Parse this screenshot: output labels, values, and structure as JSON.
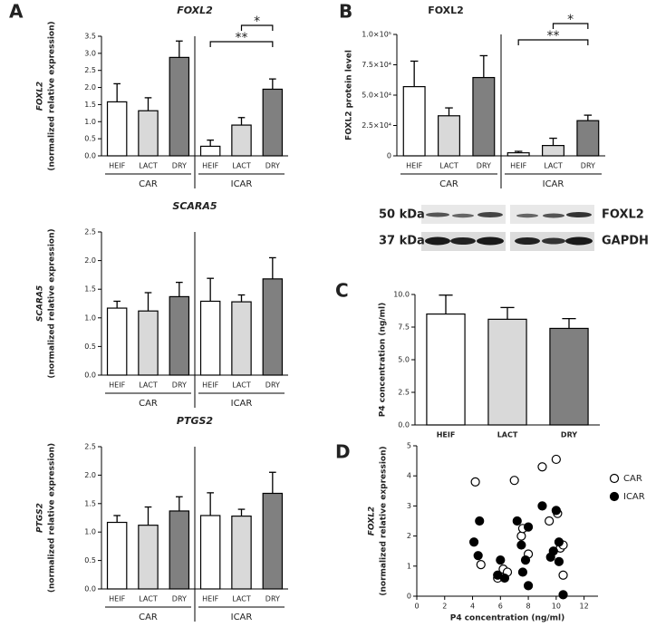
{
  "chart_data": [
    {
      "type": "bar",
      "panel": "A",
      "title": "FOXL2",
      "title_italic": true,
      "ylabel": [
        "FOXL2",
        "(normalized relative expression)"
      ],
      "ylabel_italic_first": true,
      "colors": [
        "#ffffff",
        "#d9d9d9",
        "#808080"
      ],
      "ylim": [
        0,
        3.5
      ],
      "yticks": [
        {
          "value": 0,
          "label": "0.0"
        },
        0.5,
        {
          "value": 1,
          "label": "1.0"
        },
        1.5,
        {
          "value": 2,
          "label": "2.0"
        },
        2.5,
        {
          "value": 3,
          "label": "3.0"
        },
        3.5
      ],
      "groups": [
        {
          "name": "CAR",
          "categories": [
            "HEIF",
            "LACT",
            "DRY"
          ],
          "values": [
            1.58,
            1.32,
            2.88
          ],
          "errors": [
            0.53,
            0.38,
            0.48
          ]
        },
        {
          "name": "ICAR",
          "categories": [
            "HEIF",
            "LACT",
            "DRY"
          ],
          "values": [
            0.28,
            0.9,
            1.95
          ],
          "errors": [
            0.18,
            0.22,
            0.3
          ]
        }
      ],
      "annotations": [
        {
          "text": "*",
          "group": 1,
          "from": 1,
          "to": 2
        },
        {
          "text": "**",
          "group": 1,
          "from": 0,
          "to": 2
        }
      ]
    },
    {
      "type": "bar",
      "title": "SCARA5",
      "title_italic": true,
      "ylabel": [
        "SCARA5",
        "(normalized relative expression)"
      ],
      "ylabel_italic_first": true,
      "colors": [
        "#ffffff",
        "#d9d9d9",
        "#808080"
      ],
      "ylim": [
        0,
        2.5
      ],
      "yticks": [
        {
          "value": 0,
          "label": "0.0"
        },
        0.5,
        {
          "value": 1,
          "label": "1.0"
        },
        1.5,
        {
          "value": 2,
          "label": "2.0"
        },
        2.5
      ],
      "groups": [
        {
          "name": "CAR",
          "categories": [
            "HEIF",
            "LACT",
            "DRY"
          ],
          "values": [
            1.17,
            1.12,
            1.37
          ],
          "errors": [
            0.12,
            0.32,
            0.25
          ]
        },
        {
          "name": "ICAR",
          "categories": [
            "HEIF",
            "LACT",
            "DRY"
          ],
          "values": [
            1.29,
            1.28,
            1.68
          ],
          "errors": [
            0.4,
            0.12,
            0.37
          ]
        }
      ]
    },
    {
      "type": "bar",
      "title": "PTGS2",
      "title_italic": true,
      "ylabel": [
        "PTGS2",
        "(normalized relative expression)"
      ],
      "ylabel_italic_first": true,
      "colors": [
        "#ffffff",
        "#d9d9d9",
        "#808080"
      ],
      "ylim": [
        0,
        2.5
      ],
      "yticks": [
        {
          "value": 0,
          "label": "0.0"
        },
        0.5,
        {
          "value": 1,
          "label": "1.0"
        },
        1.5,
        {
          "value": 2,
          "label": "2.0"
        },
        2.5
      ],
      "groups": [
        {
          "name": "CAR",
          "categories": [
            "HEIF",
            "LACT",
            "DRY"
          ],
          "values": [
            1.17,
            1.12,
            1.37
          ],
          "errors": [
            0.12,
            0.32,
            0.25
          ]
        },
        {
          "name": "ICAR",
          "categories": [
            "HEIF",
            "LACT",
            "DRY"
          ],
          "values": [
            1.29,
            1.28,
            1.68
          ],
          "errors": [
            0.4,
            0.12,
            0.37
          ]
        }
      ]
    },
    {
      "type": "bar",
      "panel": "B",
      "title": "FOXL2",
      "title_italic": false,
      "ylabel": [
        "FOXL2 protein level"
      ],
      "colors": [
        "#ffffff",
        "#d9d9d9",
        "#808080"
      ],
      "ylim": [
        0,
        100000
      ],
      "yticks": [
        0,
        {
          "value": 25000,
          "label": "2.5×10⁴"
        },
        {
          "value": 50000,
          "label": "5.0×10⁴"
        },
        {
          "value": 75000,
          "label": "7.5×10⁴"
        },
        {
          "value": 100000,
          "label": "1.0×10⁵"
        }
      ],
      "groups": [
        {
          "name": "CAR",
          "categories": [
            "HEIF",
            "LACT",
            "DRY"
          ],
          "values": [
            57000,
            33000,
            64500
          ],
          "errors": [
            21000,
            6500,
            18000
          ]
        },
        {
          "name": "ICAR",
          "categories": [
            "HEIF",
            "LACT",
            "DRY"
          ],
          "values": [
            2500,
            8500,
            29000
          ],
          "errors": [
            1200,
            6000,
            4500
          ]
        }
      ],
      "annotations": [
        {
          "text": "*",
          "group": 1,
          "from": 1,
          "to": 2
        },
        {
          "text": "**",
          "group": 1,
          "from": 0,
          "to": 2
        }
      ]
    },
    {
      "type": "bar",
      "panel": "C",
      "ylabel": [
        "P4 concentration (ng/ml)"
      ],
      "colors": [
        "#ffffff",
        "#d9d9d9",
        "#808080"
      ],
      "ylim": [
        0,
        10
      ],
      "yticks": [
        {
          "value": 0,
          "label": "0.0"
        },
        2.5,
        {
          "value": 5,
          "label": "5.0"
        },
        7.5,
        {
          "value": 10,
          "label": "10.0"
        }
      ],
      "categories": [
        "HEIF",
        "LACT",
        "DRY"
      ],
      "values": [
        8.5,
        8.1,
        7.4
      ],
      "errors": [
        1.45,
        0.9,
        0.75
      ]
    },
    {
      "type": "scatter",
      "panel": "D",
      "ylabel": [
        "FOXL2",
        "(normalized relative expression)"
      ],
      "ylabel_italic_first": true,
      "xlabel": "P4 concentration (ng/ml)",
      "xlim": [
        0,
        13
      ],
      "xticks": [
        0,
        2,
        4,
        6,
        8,
        10,
        12
      ],
      "ylim": [
        0,
        5
      ],
      "yticks": [
        0,
        1,
        2,
        3,
        4,
        5
      ],
      "series": [
        {
          "name": "CAR",
          "color": "#000000",
          "fill": "#ffffff",
          "x": [
            4.2,
            4.6,
            5.8,
            6.2,
            6.5,
            7.0,
            7.5,
            7.6,
            8.0,
            9.0,
            9.5,
            10.0,
            10.1,
            10.3,
            10.5,
            10.5
          ],
          "values": [
            3.8,
            1.05,
            0.6,
            0.9,
            0.8,
            3.85,
            2.0,
            2.25,
            1.4,
            4.3,
            2.5,
            4.55,
            2.75,
            1.6,
            1.7,
            0.7
          ]
        },
        {
          "name": "ICAR",
          "color": "#000000",
          "fill": "#000000",
          "x": [
            4.1,
            4.5,
            4.4,
            5.8,
            6.0,
            6.3,
            7.2,
            7.5,
            7.6,
            7.8,
            8.0,
            8.0,
            9.0,
            9.6,
            9.8,
            10.0,
            10.2,
            10.2,
            10.5
          ],
          "values": [
            1.8,
            2.5,
            1.35,
            0.7,
            1.2,
            0.6,
            2.5,
            1.7,
            0.8,
            1.2,
            2.3,
            0.35,
            3.0,
            1.3,
            1.5,
            2.85,
            1.15,
            1.8,
            0.05
          ]
        }
      ]
    }
  ],
  "blot": {
    "left_labels": [
      "50 kDa",
      "37 kDa"
    ],
    "right_labels": [
      "FOXL2",
      "GAPDH"
    ]
  }
}
